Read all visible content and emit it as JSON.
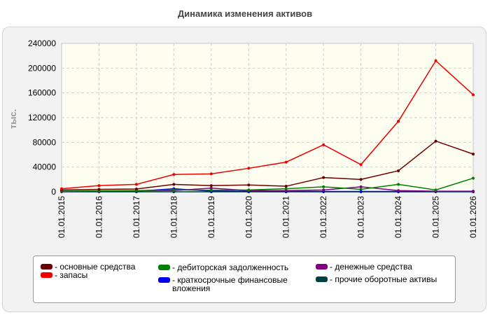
{
  "chart_data": {
    "type": "line",
    "title": "Динамика изменения активов",
    "ylabel": "тыс.",
    "xlabel": "",
    "ylim": [
      0,
      240000
    ],
    "yticks": [
      0,
      40000,
      80000,
      120000,
      160000,
      200000,
      240000
    ],
    "grid": true,
    "legend_position": "bottom",
    "categories": [
      "01.01.2015",
      "01.01.2016",
      "01.01.2017",
      "01.01.2018",
      "01.01.2019",
      "01.01.2020",
      "01.01.2021",
      "01.01.2022",
      "01.01.2023",
      "01.01.2024",
      "01.01.2025",
      "01.01.2026"
    ],
    "series": [
      {
        "name": "- основные средства",
        "color": "#6b0000",
        "values": [
          3000,
          4000,
          4500,
          12000,
          10000,
          11000,
          9000,
          23000,
          20000,
          34000,
          82000,
          61000
        ]
      },
      {
        "name": "- запасы",
        "color": "#ee0000",
        "values": [
          5000,
          10000,
          12000,
          28000,
          29000,
          38000,
          48000,
          76000,
          44000,
          114000,
          212000,
          157000
        ]
      },
      {
        "name": "- дебиторская задолженность",
        "color": "#008000",
        "values": [
          1000,
          1500,
          2000,
          3000,
          2500,
          3000,
          5000,
          8000,
          4000,
          12000,
          3000,
          22000
        ]
      },
      {
        "name": "- краткосрочные финансовые вложения",
        "color": "#0000ee",
        "values": [
          500,
          800,
          1000,
          5000,
          1000,
          1000,
          500,
          500,
          500,
          500,
          500,
          500
        ]
      },
      {
        "name": "- денежные средства",
        "color": "#800080",
        "values": [
          500,
          1000,
          1500,
          2000,
          6000,
          2000,
          2000,
          3000,
          8000,
          2000,
          1000,
          1000
        ]
      },
      {
        "name": "- прочие оборотные активы",
        "color": "#004040",
        "values": [
          0,
          0,
          0,
          0,
          0,
          0,
          0,
          0,
          0,
          0,
          0,
          0
        ]
      }
    ]
  }
}
